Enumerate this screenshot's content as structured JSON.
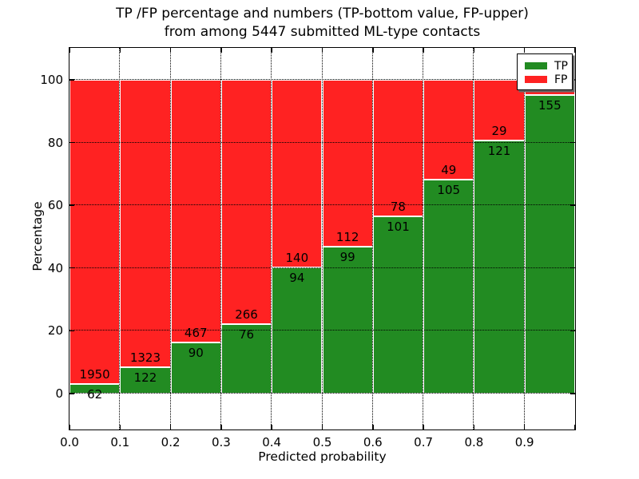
{
  "title": {
    "line1": "TP /FP percentage and numbers (TP-bottom value, FP-upper)",
    "line2": "from among 5447 submitted ML-type contacts"
  },
  "axes": {
    "x_label": "Predicted probability",
    "y_label": "Percentage",
    "x_tick_labels": [
      "0.0",
      "0.1",
      "0.2",
      "0.3",
      "0.4",
      "0.5",
      "0.6",
      "0.7",
      "0.8",
      "0.9"
    ],
    "y_tick_labels": [
      "0",
      "20",
      "40",
      "60",
      "80",
      "100"
    ]
  },
  "legend": {
    "items": [
      {
        "label": "TP",
        "color": "#228b22"
      },
      {
        "label": "FP",
        "color": "#ff2222"
      }
    ]
  },
  "chart_data": {
    "type": "bar",
    "stacked": true,
    "normalized": "each bin scaled to 100%",
    "title": "TP /FP percentage and numbers (TP-bottom value, FP-upper) from among 5447 submitted ML-type contacts",
    "xlabel": "Predicted probability",
    "ylabel": "Percentage",
    "total_contacts": 5447,
    "bins": [
      "0.0-0.1",
      "0.1-0.2",
      "0.2-0.3",
      "0.3-0.4",
      "0.4-0.5",
      "0.5-0.6",
      "0.6-0.7",
      "0.7-0.8",
      "0.8-0.9",
      "0.9-1.0"
    ],
    "series": [
      {
        "name": "TP",
        "color": "#228b22",
        "counts": [
          62,
          122,
          90,
          76,
          94,
          99,
          101,
          105,
          121,
          155
        ]
      },
      {
        "name": "FP",
        "color": "#ff2222",
        "counts": [
          1950,
          1323,
          467,
          266,
          140,
          112,
          78,
          49,
          29,
          8
        ]
      }
    ],
    "tp_percent_of_bin": [
      3.1,
      8.4,
      16.2,
      22.2,
      40.2,
      46.9,
      56.4,
      68.2,
      80.7,
      95.1
    ],
    "fp_count_label_visible": [
      true,
      true,
      true,
      true,
      true,
      true,
      true,
      true,
      true,
      false
    ],
    "xlim": [
      0.0,
      1.0
    ],
    "ylim": [
      -11.5,
      110.2
    ],
    "grid": true,
    "gridline_style": "black dotted, drawn over bars",
    "bar_edge_color": "#ffffff",
    "legend_position": "upper right"
  }
}
